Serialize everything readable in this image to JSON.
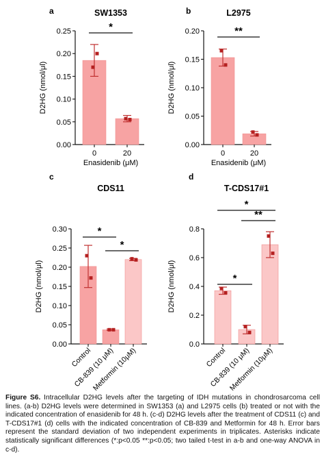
{
  "chart_data": [
    {
      "type": "bar",
      "panel_letter": "a",
      "title": "SW1353",
      "categories": [
        "0",
        "20"
      ],
      "values": [
        0.185,
        0.057
      ],
      "error": [
        0.035,
        0.007
      ],
      "points": [
        [
          0.17,
          0.2
        ],
        [
          0.057,
          0.055
        ]
      ],
      "xlabel": "Enasidenib (μM)",
      "ylabel": "D2HG (nmol/μl)",
      "ylim": [
        0,
        0.25
      ],
      "yticks": [
        "0.00",
        "0.05",
        "0.10",
        "0.15",
        "0.20",
        "0.25"
      ],
      "bar_fill": [
        "#f7a3a3",
        "#f7a3a3"
      ],
      "significance": [
        {
          "from": 0,
          "to": 1,
          "label": "*"
        }
      ]
    },
    {
      "type": "bar",
      "panel_letter": "b",
      "title": "L2975",
      "categories": [
        "0",
        "20"
      ],
      "values": [
        0.153,
        0.019
      ],
      "error": [
        0.015,
        0.004
      ],
      "points": [
        [
          0.165,
          0.14
        ],
        [
          0.022,
          0.017
        ]
      ],
      "xlabel": "Enasidenib (μM)",
      "ylabel": "D2HG (nmol/μl)",
      "ylim": [
        0,
        0.2
      ],
      "yticks": [
        "0.00",
        "0.05",
        "0.10",
        "0.15",
        "0.20"
      ],
      "bar_fill": [
        "#f7a3a3",
        "#f7a3a3"
      ],
      "significance": [
        {
          "from": 0,
          "to": 1,
          "label": "**"
        }
      ]
    },
    {
      "type": "bar",
      "panel_letter": "c",
      "title": "CDS11",
      "categories": [
        "Control",
        "CB-839 (10 μM)",
        "Metformin (10μM)"
      ],
      "values": [
        0.202,
        0.037,
        0.22
      ],
      "error": [
        0.055,
        0.002,
        0.003
      ],
      "points": [
        [
          0.23,
          0.172
        ],
        [
          0.037,
          0.037
        ],
        [
          0.222,
          0.219
        ]
      ],
      "xlabel": "",
      "ylabel": "D2HG (nmol/μl)",
      "ylim": [
        0,
        0.3
      ],
      "yticks": [
        "0.00",
        "0.05",
        "0.10",
        "0.15",
        "0.20",
        "0.25",
        "0.30"
      ],
      "bar_fill": [
        "#f7a3a3",
        "#f7a3a3",
        "#fbc7c7"
      ],
      "significance": [
        {
          "from": 0,
          "to": 1,
          "label": "*"
        },
        {
          "from": 1,
          "to": 2,
          "label": "*"
        }
      ]
    },
    {
      "type": "bar",
      "panel_letter": "d",
      "title": "T-CDS17#1",
      "categories": [
        "Control",
        "CB-839 (10 μM)",
        "Metformin (10μM)"
      ],
      "values": [
        0.37,
        0.1,
        0.69
      ],
      "error": [
        0.025,
        0.03,
        0.09
      ],
      "points": [
        [
          0.385,
          0.355
        ],
        [
          0.12,
          0.08
        ],
        [
          0.75,
          0.63
        ]
      ],
      "xlabel": "",
      "ylabel": "D2HG (nmol/μl)",
      "ylim": [
        0,
        0.8
      ],
      "yticks": [
        "0.0",
        "0.2",
        "0.4",
        "0.6",
        "0.8"
      ],
      "bar_fill": [
        "#fbc7c7",
        "#fbc7c7",
        "#fbc7c7"
      ],
      "significance": [
        {
          "from": 0,
          "to": 1,
          "label": "*"
        },
        {
          "from": 1,
          "to": 2,
          "label": "**"
        },
        {
          "from": 0,
          "to": 2,
          "label": "*"
        }
      ]
    }
  ],
  "colors": {
    "point": "#b52020",
    "error_bar": "#c03030",
    "axis": "#111111",
    "bar_edge": "#f09090"
  },
  "caption": {
    "label": "Figure S6.",
    "text": " Intracellular D2HG levels after the targeting of IDH mutations in chondrosarcoma cell lines. (a-b) D2HG levels were determined in SW1353 (a) and L2975 cells (b) treated or not with the indicated concentration of enasidenib for 48 h. (c-d) D2HG levels after the treatment of CDS11 (c) and T-CDS17#1 (d) cells with the indicated concentration of CB-839 and Metformin for 48 h. Error bars represent the standard deviation of two independent experiments in triplicates. Asterisks indicate statistically significant differences (*:p<0.05 **:p<0.05; two tailed t-test in a-b and one-way ANOVA in c-d)."
  }
}
